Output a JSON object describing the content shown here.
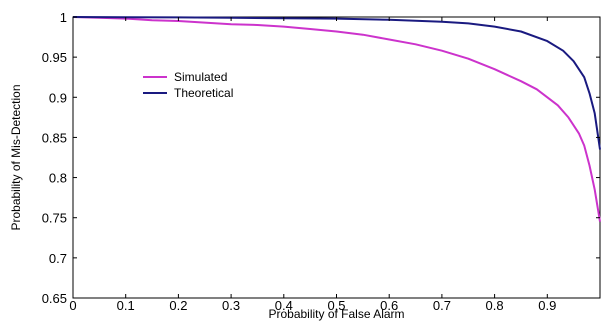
{
  "chart_data": {
    "type": "line",
    "title": "",
    "xlabel": "Probability of False Alarm",
    "ylabel": "Probability of Mis-Detection",
    "xlim": [
      0,
      1
    ],
    "ylim": [
      0.65,
      1
    ],
    "xticks": [
      0,
      0.1,
      0.2,
      0.3,
      0.4,
      0.5,
      0.6,
      0.7,
      0.8,
      0.9
    ],
    "xtick_labels": [
      "0",
      "0.1",
      "0.2",
      "0.3",
      "0.4",
      "0.5",
      "0.6",
      "0.7",
      "0.8",
      "0.9"
    ],
    "yticks": [
      0.65,
      0.7,
      0.75,
      0.8,
      0.85,
      0.9,
      0.95,
      1
    ],
    "ytick_labels": [
      "0.65",
      "0.7",
      "0.75",
      "0.8",
      "0.85",
      "0.9",
      "0.95",
      "1"
    ],
    "grid": false,
    "legend": "upper-left",
    "series": [
      {
        "name": "Simulated",
        "color": "#cc33cc",
        "x": [
          0,
          0.05,
          0.1,
          0.15,
          0.2,
          0.25,
          0.3,
          0.35,
          0.4,
          0.45,
          0.5,
          0.55,
          0.6,
          0.65,
          0.7,
          0.75,
          0.8,
          0.85,
          0.88,
          0.9,
          0.92,
          0.94,
          0.96,
          0.97,
          0.98,
          0.99,
          1.0
        ],
        "y": [
          1.0,
          0.999,
          0.998,
          0.996,
          0.995,
          0.993,
          0.991,
          0.99,
          0.988,
          0.985,
          0.982,
          0.978,
          0.972,
          0.966,
          0.958,
          0.948,
          0.935,
          0.92,
          0.91,
          0.9,
          0.89,
          0.875,
          0.855,
          0.84,
          0.815,
          0.785,
          0.745
        ]
      },
      {
        "name": "Theoretical",
        "color": "#1a1a80",
        "x": [
          0,
          0.1,
          0.2,
          0.3,
          0.4,
          0.5,
          0.6,
          0.7,
          0.75,
          0.8,
          0.85,
          0.9,
          0.93,
          0.95,
          0.97,
          0.98,
          0.99,
          1.0
        ],
        "y": [
          1.0,
          0.9998,
          0.9995,
          0.999,
          0.9985,
          0.998,
          0.9965,
          0.994,
          0.992,
          0.988,
          0.982,
          0.97,
          0.958,
          0.945,
          0.925,
          0.905,
          0.88,
          0.835
        ]
      }
    ]
  }
}
